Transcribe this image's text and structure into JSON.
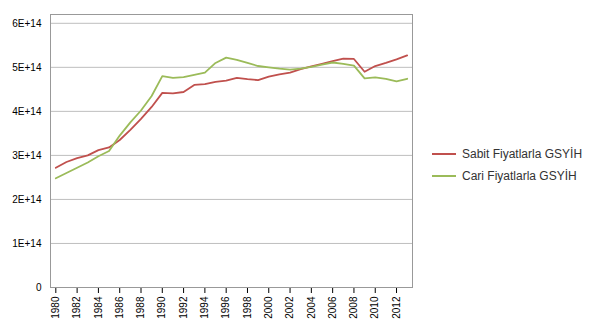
{
  "chart_data": {
    "type": "line",
    "x": [
      1980,
      1981,
      1982,
      1983,
      1984,
      1985,
      1986,
      1987,
      1988,
      1989,
      1990,
      1991,
      1992,
      1993,
      1994,
      1995,
      1996,
      1997,
      1998,
      1999,
      2000,
      2001,
      2002,
      2003,
      2004,
      2005,
      2006,
      2007,
      2008,
      2009,
      2010,
      2011,
      2012,
      2013
    ],
    "series": [
      {
        "name": "Sabit Fiyatlarla GSYİH",
        "color": "#C0504D",
        "values": [
          272000000000000.0,
          285000000000000.0,
          294000000000000.0,
          300000000000000.0,
          312000000000000.0,
          318000000000000.0,
          335000000000000.0,
          358000000000000.0,
          383000000000000.0,
          410000000000000.0,
          442000000000000.0,
          441000000000000.0,
          444000000000000.0,
          460000000000000.0,
          462000000000000.0,
          467000000000000.0,
          470000000000000.0,
          476000000000000.0,
          473000000000000.0,
          471000000000000.0,
          479000000000000.0,
          484000000000000.0,
          488000000000000.0,
          496000000000000.0,
          502000000000000.0,
          508000000000000.0,
          514000000000000.0,
          520000000000000.0,
          519000000000000.0,
          490000000000000.0,
          503000000000000.0,
          510000000000000.0,
          518000000000000.0,
          527000000000000.0
        ]
      },
      {
        "name": "Cari Fiyatlarla GSYİH",
        "color": "#9BBB59",
        "values": [
          248000000000000.0,
          260000000000000.0,
          272000000000000.0,
          284000000000000.0,
          298000000000000.0,
          310000000000000.0,
          345000000000000.0,
          375000000000000.0,
          402000000000000.0,
          435000000000000.0,
          480000000000000.0,
          476000000000000.0,
          478000000000000.0,
          483000000000000.0,
          488000000000000.0,
          510000000000000.0,
          522000000000000.0,
          517000000000000.0,
          510000000000000.0,
          503000000000000.0,
          500000000000000.0,
          497000000000000.0,
          495000000000000.0,
          497000000000000.0,
          501000000000000.0,
          506000000000000.0,
          511000000000000.0,
          508000000000000.0,
          504000000000000.0,
          475000000000000.0,
          477000000000000.0,
          474000000000000.0,
          468000000000000.0,
          474000000000000.0
        ]
      }
    ],
    "xlim": [
      1979.5,
      2013.5
    ],
    "xticks": [
      1980,
      1982,
      1984,
      1986,
      1988,
      1990,
      1992,
      1994,
      1996,
      1998,
      2000,
      2002,
      2004,
      2006,
      2008,
      2010,
      2012
    ],
    "ylim": [
      0,
      620000000000000.0
    ],
    "yticks": [
      0,
      {
        "value": 100000000000000.0,
        "label": "1E+14"
      },
      {
        "value": 200000000000000.0,
        "label": "2E+14"
      },
      {
        "value": 300000000000000.0,
        "label": "3E+14"
      },
      {
        "value": 400000000000000.0,
        "label": "4E+14"
      },
      {
        "value": 500000000000000.0,
        "label": "5E+14"
      },
      {
        "value": 600000000000000.0,
        "label": "6E+14"
      }
    ],
    "grid": true,
    "legend": "right"
  }
}
